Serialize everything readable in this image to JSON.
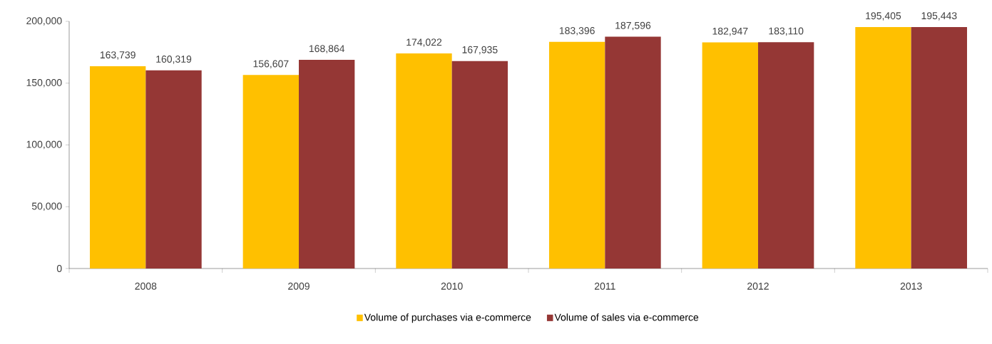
{
  "chart_data": {
    "type": "bar",
    "categories": [
      "2008",
      "2009",
      "2010",
      "2011",
      "2012",
      "2013"
    ],
    "series": [
      {
        "name": "Volume of purchases via e-commerce",
        "color": "#ffc000",
        "values": [
          163739,
          156607,
          174022,
          183396,
          182947,
          195405
        ],
        "value_labels": [
          "163,739",
          "156,607",
          "174,022",
          "183,396",
          "182,947",
          "195,405"
        ]
      },
      {
        "name": "Volume of sales via e-commerce",
        "color": "#953735",
        "values": [
          160319,
          168864,
          167935,
          187596,
          183110,
          195443
        ],
        "value_labels": [
          "160,319",
          "168,864",
          "167,935",
          "187,596",
          "183,110",
          "195,443"
        ]
      }
    ],
    "ylim": [
      0,
      200000
    ],
    "yticks": [
      0,
      {
        "value": 50000,
        "label": "50,000"
      },
      {
        "value": 100000,
        "label": "100,000"
      },
      {
        "value": 150000,
        "label": "150,000"
      },
      {
        "value": 200000,
        "label": "200,000"
      }
    ],
    "grid": false,
    "legend": "bottom"
  }
}
